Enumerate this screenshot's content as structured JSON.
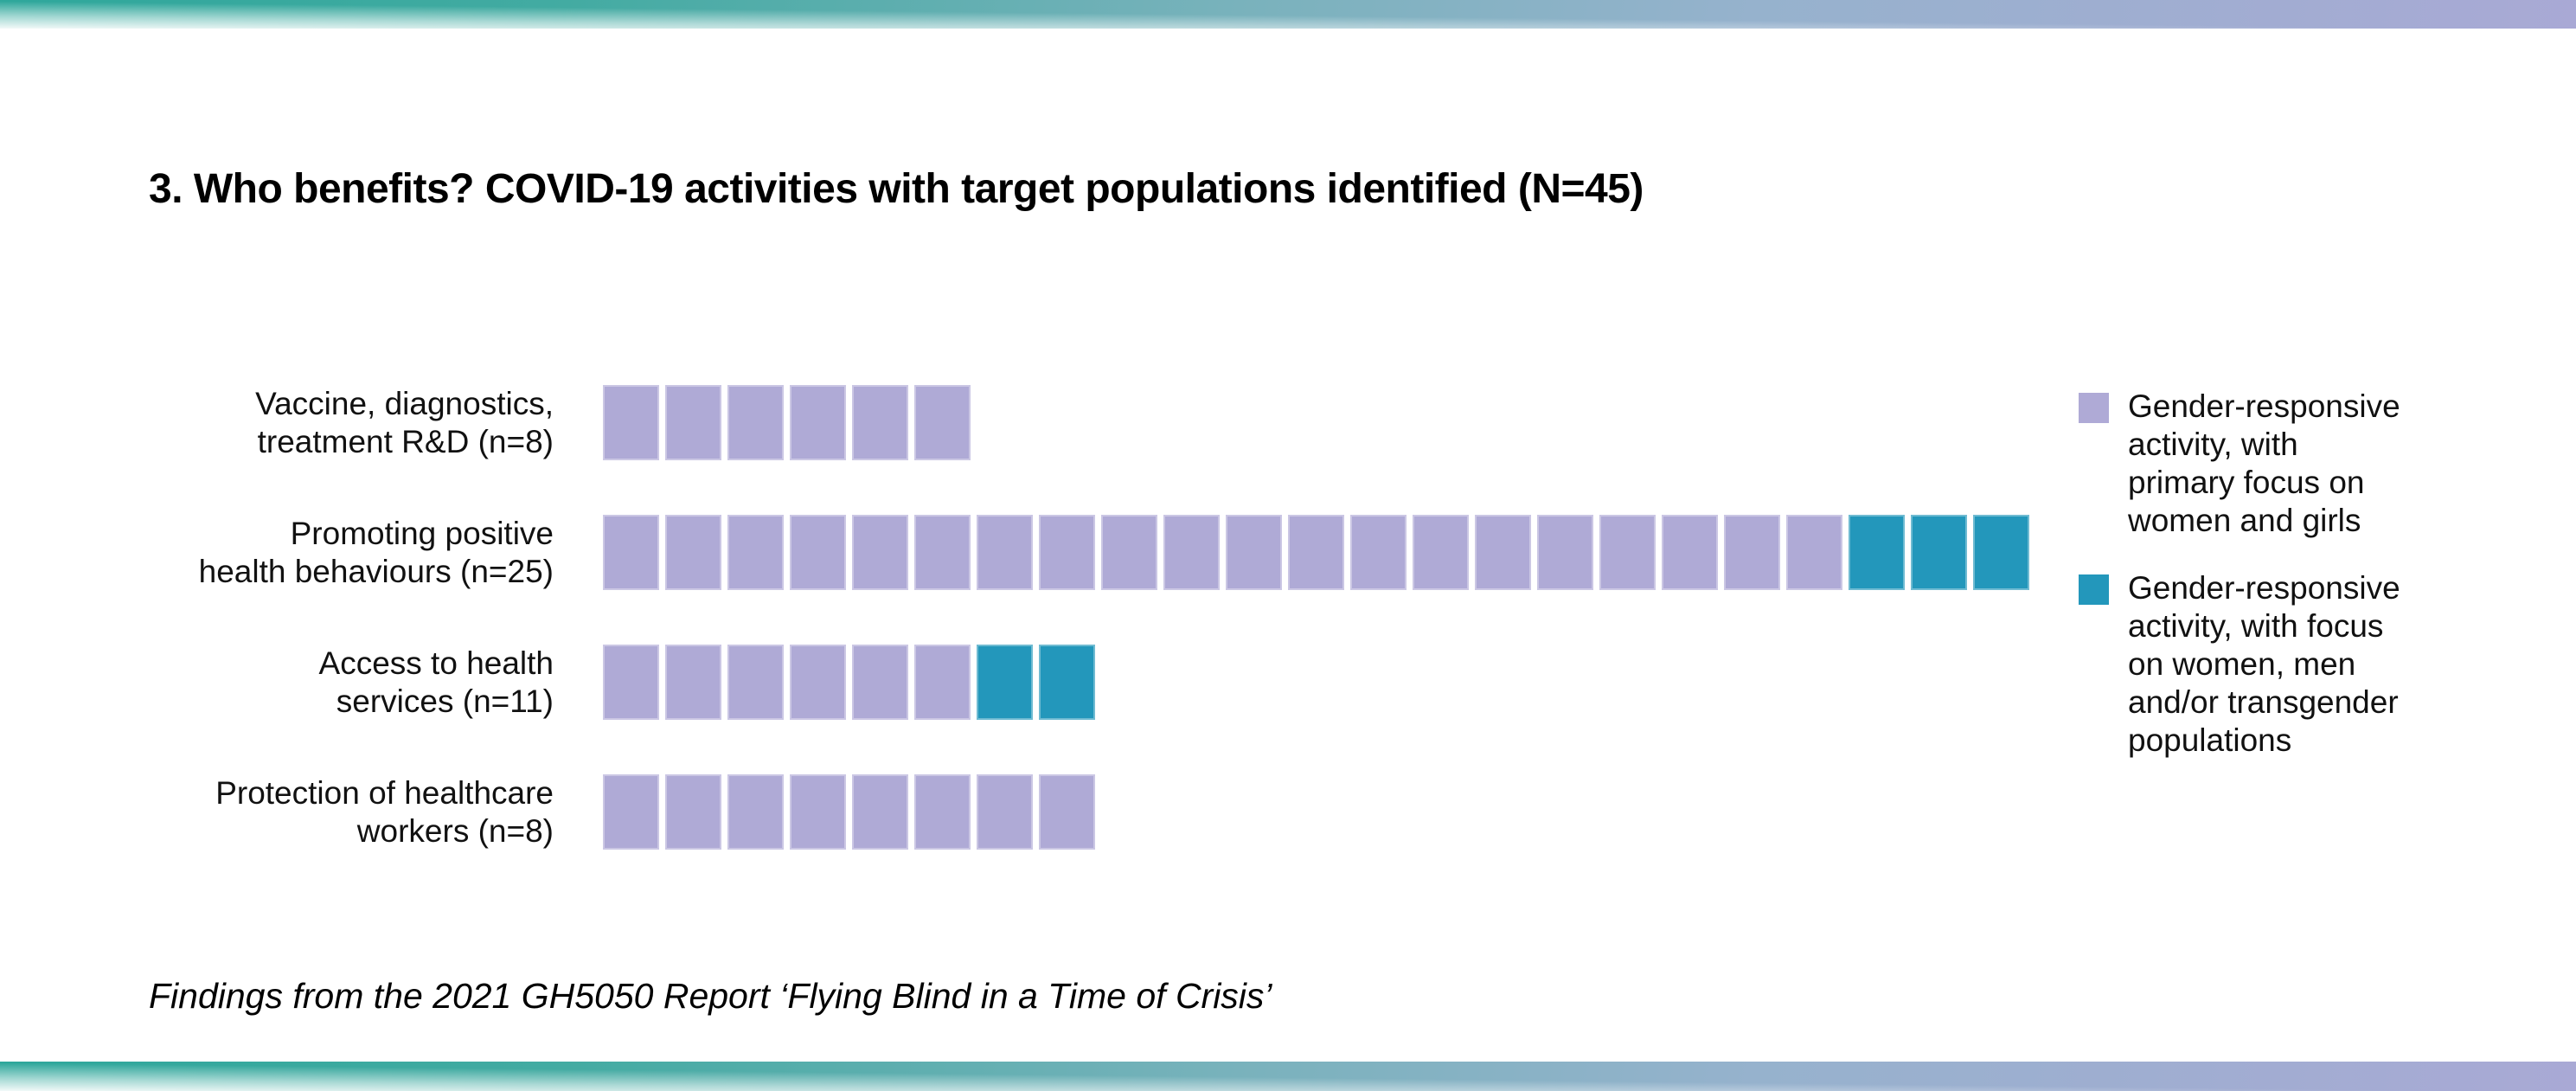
{
  "header": {
    "title": "3. Who benefits? COVID-19 activities with target populations identified (N=45)"
  },
  "footer": {
    "text": "Findings from the 2021 GH5050 Report ‘Flying Blind in a Time of Crisis’"
  },
  "colors": {
    "purple": "#AFAAD6",
    "teal": "#2397BB",
    "bar_teal": "#2EA79B",
    "bar_lavender": "#A9A9D5",
    "text": "#111111"
  },
  "legend": {
    "items": [
      {
        "swatch": "purple",
        "color": "#AFAAD6",
        "label": "Gender-responsive\nactivity, with\nprimary focus on\nwomen and girls"
      },
      {
        "swatch": "teal",
        "color": "#2397BB",
        "label": "Gender-responsive\nactivity, with focus\non women, men\nand/or transgender\npopulations"
      }
    ]
  },
  "chart_data": {
    "type": "waffle-bar",
    "title": "3. Who benefits? COVID-19 activities with target populations identified (N=45)",
    "total_squares": 45,
    "unit": "1 square = 1 COVID-19 activity",
    "legend_position": "right",
    "categories": [
      "Vaccine, diagnostics, treatment R&D (n=8)",
      "Promoting positive health behaviours (n=25)",
      "Access to health services (n=11)",
      "Protection of healthcare workers (n=8)"
    ],
    "series": [
      {
        "name": "Gender-responsive activity, with primary focus on women and girls",
        "color": "#AFAAD6",
        "values": [
          6,
          20,
          6,
          8
        ]
      },
      {
        "name": "Gender-responsive activity, with focus on women, men and/or transgender populations",
        "color": "#2397BB",
        "values": [
          0,
          3,
          2,
          0
        ]
      }
    ],
    "rows": [
      {
        "label": "Vaccine, diagnostics,\ntreatment R&D (n=8)",
        "purple": 6,
        "teal": 0
      },
      {
        "label": "Promoting positive\nhealth behaviours (n=25)",
        "purple": 20,
        "teal": 3
      },
      {
        "label": "Access to health\nservices (n=11)",
        "purple": 6,
        "teal": 2
      },
      {
        "label": "Protection of healthcare\nworkers (n=8)",
        "purple": 8,
        "teal": 0
      }
    ]
  }
}
